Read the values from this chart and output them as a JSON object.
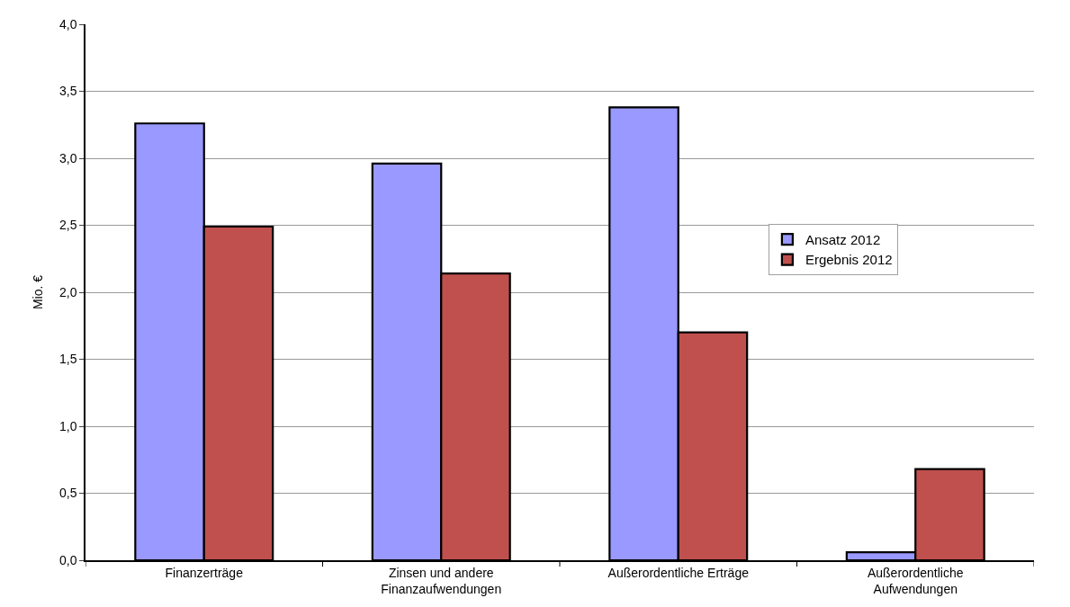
{
  "chart_data": {
    "type": "bar",
    "ylabel": "Mio. €",
    "categories": [
      "Finanzerträge",
      "Zinsen und andere\nFinanzaufwendungen",
      "Außerordentliche Erträge",
      "Außerordentliche\nAufwendungen"
    ],
    "series": [
      {
        "name": "Ansatz 2012",
        "color": "#9999ff",
        "values": [
          3.26,
          2.96,
          3.38,
          0.06
        ]
      },
      {
        "name": "Ergebnis 2012",
        "color": "#c0504d",
        "values": [
          2.49,
          2.14,
          1.7,
          0.68
        ]
      }
    ],
    "ylim": [
      0,
      4
    ],
    "yticks": [
      {
        "value": 0,
        "label": "0,0"
      },
      {
        "value": 0.5,
        "label": "0,5"
      },
      {
        "value": 1,
        "label": "1,0"
      },
      {
        "value": 1.5,
        "label": "1,5"
      },
      {
        "value": 2,
        "label": "2,0"
      },
      {
        "value": 2.5,
        "label": "2,5"
      },
      {
        "value": 3,
        "label": "3,0"
      },
      {
        "value": 3.5,
        "label": "3,5"
      },
      {
        "value": 4,
        "label": "4,0"
      }
    ],
    "grid": "y",
    "legend": "right"
  }
}
